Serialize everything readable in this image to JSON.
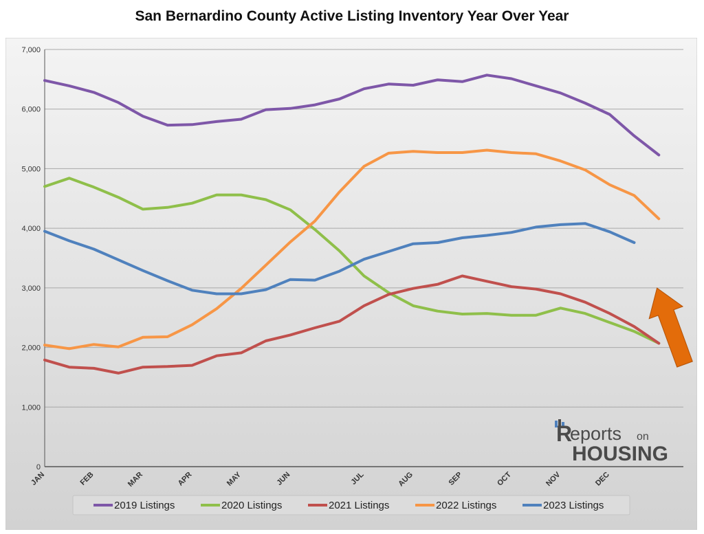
{
  "chart_data": {
    "type": "line",
    "title": "San Bernardino County Active Listing Inventory Year Over Year",
    "xlabel": "",
    "ylabel": "",
    "ylim": [
      0,
      7000
    ],
    "y_ticks": [
      "0",
      "1,000",
      "2,000",
      "3,000",
      "4,000",
      "5,000",
      "6,000",
      "7,000"
    ],
    "y_tick_values": [
      0,
      1000,
      2000,
      3000,
      4000,
      5000,
      6000,
      7000
    ],
    "x_count": 27,
    "month_labels": [
      {
        "label": "JAN",
        "x": 0
      },
      {
        "label": "FEB",
        "x": 2
      },
      {
        "label": "MAR",
        "x": 4
      },
      {
        "label": "APR",
        "x": 6
      },
      {
        "label": "MAY",
        "x": 8
      },
      {
        "label": "JUN",
        "x": 10
      },
      {
        "label": "JUL",
        "x": 13
      },
      {
        "label": "AUG",
        "x": 15
      },
      {
        "label": "SEP",
        "x": 17
      },
      {
        "label": "OCT",
        "x": 19
      },
      {
        "label": "NOV",
        "x": 21
      },
      {
        "label": "DEC",
        "x": 23
      }
    ],
    "grid": true,
    "legend_position": "bottom",
    "series": [
      {
        "name": "2019 Listings",
        "color": "#7e57a8",
        "values": [
          6480,
          6390,
          6280,
          6110,
          5880,
          5730,
          5740,
          5790,
          5830,
          5990,
          6010,
          6070,
          6170,
          6340,
          6420,
          6400,
          6490,
          6460,
          6570,
          6510,
          6390,
          6270,
          6100,
          5910,
          5550,
          5230
        ]
      },
      {
        "name": "2020 Listings",
        "color": "#8fbf4a",
        "values": [
          4700,
          4840,
          4690,
          4520,
          4320,
          4350,
          4420,
          4560,
          4560,
          4480,
          4310,
          3980,
          3620,
          3200,
          2920,
          2700,
          2610,
          2560,
          2570,
          2540,
          2540,
          2660,
          2570,
          2420,
          2270,
          2070
        ]
      },
      {
        "name": "2021 Listings",
        "color": "#c0504d",
        "values": [
          1790,
          1670,
          1650,
          1570,
          1670,
          1680,
          1700,
          1860,
          1910,
          2110,
          2210,
          2330,
          2440,
          2700,
          2890,
          2990,
          3060,
          3200,
          3110,
          3020,
          2980,
          2900,
          2760,
          2570,
          2350,
          2070
        ]
      },
      {
        "name": "2022 Listings",
        "color": "#f79646",
        "values": [
          2040,
          1980,
          2050,
          2010,
          2170,
          2180,
          2380,
          2650,
          2990,
          3380,
          3770,
          4120,
          4610,
          5040,
          5260,
          5290,
          5270,
          5270,
          5310,
          5270,
          5250,
          5130,
          4980,
          4730,
          4550,
          4160
        ]
      },
      {
        "name": "2023 Listings",
        "color": "#4f81bd",
        "values": [
          3950,
          3790,
          3650,
          3470,
          3290,
          3120,
          2960,
          2900,
          2900,
          2970,
          3140,
          3130,
          3280,
          3480,
          3610,
          3740,
          3760,
          3840,
          3880,
          3930,
          4020,
          4060,
          4080,
          3940,
          3760
        ]
      }
    ],
    "annotation": {
      "type": "arrow",
      "color": "#e36c0a",
      "direction": "up-left"
    }
  },
  "logo": {
    "text_main": "eports",
    "text_small": "on",
    "text_bottom": "HOUSING"
  }
}
